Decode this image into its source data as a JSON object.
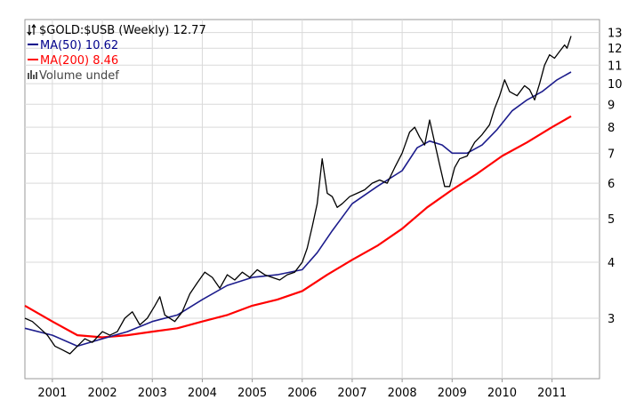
{
  "chart_data": {
    "type": "line",
    "symbol_text": "$GOLD:$USB (Weekly) 12.77",
    "last_value": 12.77,
    "legend": [
      {
        "key": "ma50",
        "text": "MA(50) 10.62",
        "color": "#00008b"
      },
      {
        "key": "ma200",
        "text": "MA(200) 8.46",
        "color": "#ff0000"
      },
      {
        "key": "volume",
        "text": "Volume undef",
        "color": "#555555"
      }
    ],
    "x_ticks": [
      "2001",
      "2002",
      "2003",
      "2004",
      "2005",
      "2006",
      "2007",
      "2008",
      "2009",
      "2010",
      "2011"
    ],
    "x_tick_values": [
      2001.0,
      2002.0,
      2003.0,
      2004.0,
      2005.0,
      2006.0,
      2007.0,
      2008.0,
      2009.0,
      2010.0,
      2011.0
    ],
    "xlim": [
      2000.45,
      2011.95
    ],
    "y_ticks": [
      "3",
      "4",
      "5",
      "6",
      "7",
      "8",
      "9",
      "10",
      "11",
      "12",
      "13"
    ],
    "y_tick_values": [
      3,
      4,
      5,
      6,
      7,
      8,
      9,
      10,
      11,
      12,
      13
    ],
    "ylim": [
      2.2,
      13.9
    ],
    "scale": "log",
    "grid": true,
    "series": [
      {
        "key": "price",
        "color": "#000000",
        "points": [
          [
            2000.45,
            3.0
          ],
          [
            2000.6,
            2.95
          ],
          [
            2000.75,
            2.85
          ],
          [
            2000.9,
            2.75
          ],
          [
            2001.05,
            2.6
          ],
          [
            2001.2,
            2.55
          ],
          [
            2001.35,
            2.5
          ],
          [
            2001.5,
            2.6
          ],
          [
            2001.65,
            2.7
          ],
          [
            2001.8,
            2.65
          ],
          [
            2002.0,
            2.8
          ],
          [
            2002.15,
            2.75
          ],
          [
            2002.3,
            2.8
          ],
          [
            2002.45,
            3.0
          ],
          [
            2002.6,
            3.1
          ],
          [
            2002.75,
            2.9
          ],
          [
            2002.9,
            3.0
          ],
          [
            2003.05,
            3.2
          ],
          [
            2003.15,
            3.35
          ],
          [
            2003.25,
            3.05
          ],
          [
            2003.45,
            2.95
          ],
          [
            2003.6,
            3.1
          ],
          [
            2003.75,
            3.4
          ],
          [
            2003.9,
            3.6
          ],
          [
            2004.05,
            3.8
          ],
          [
            2004.2,
            3.7
          ],
          [
            2004.35,
            3.5
          ],
          [
            2004.5,
            3.75
          ],
          [
            2004.65,
            3.65
          ],
          [
            2004.8,
            3.8
          ],
          [
            2004.95,
            3.7
          ],
          [
            2005.1,
            3.85
          ],
          [
            2005.25,
            3.75
          ],
          [
            2005.4,
            3.7
          ],
          [
            2005.55,
            3.65
          ],
          [
            2005.7,
            3.75
          ],
          [
            2005.85,
            3.8
          ],
          [
            2006.0,
            4.0
          ],
          [
            2006.1,
            4.3
          ],
          [
            2006.2,
            4.8
          ],
          [
            2006.3,
            5.4
          ],
          [
            2006.4,
            6.8
          ],
          [
            2006.5,
            5.7
          ],
          [
            2006.6,
            5.6
          ],
          [
            2006.7,
            5.3
          ],
          [
            2006.8,
            5.4
          ],
          [
            2006.95,
            5.6
          ],
          [
            2007.1,
            5.7
          ],
          [
            2007.25,
            5.8
          ],
          [
            2007.4,
            6.0
          ],
          [
            2007.55,
            6.1
          ],
          [
            2007.7,
            6.0
          ],
          [
            2007.85,
            6.5
          ],
          [
            2008.0,
            7.0
          ],
          [
            2008.15,
            7.8
          ],
          [
            2008.25,
            8.0
          ],
          [
            2008.35,
            7.6
          ],
          [
            2008.45,
            7.3
          ],
          [
            2008.55,
            8.3
          ],
          [
            2008.65,
            7.4
          ],
          [
            2008.75,
            6.6
          ],
          [
            2008.85,
            5.9
          ],
          [
            2008.95,
            5.9
          ],
          [
            2009.05,
            6.5
          ],
          [
            2009.15,
            6.8
          ],
          [
            2009.3,
            6.9
          ],
          [
            2009.45,
            7.4
          ],
          [
            2009.6,
            7.7
          ],
          [
            2009.75,
            8.1
          ],
          [
            2009.85,
            8.8
          ],
          [
            2009.95,
            9.4
          ],
          [
            2010.05,
            10.2
          ],
          [
            2010.15,
            9.6
          ],
          [
            2010.3,
            9.4
          ],
          [
            2010.45,
            9.9
          ],
          [
            2010.55,
            9.7
          ],
          [
            2010.65,
            9.2
          ],
          [
            2010.75,
            10.0
          ],
          [
            2010.85,
            11.0
          ],
          [
            2010.95,
            11.6
          ],
          [
            2011.05,
            11.4
          ],
          [
            2011.15,
            11.8
          ],
          [
            2011.25,
            12.2
          ],
          [
            2011.3,
            12.0
          ],
          [
            2011.38,
            12.77
          ]
        ]
      },
      {
        "key": "ma50",
        "color": "#1c1c8c",
        "points": [
          [
            2000.45,
            2.85
          ],
          [
            2001.0,
            2.75
          ],
          [
            2001.5,
            2.6
          ],
          [
            2002.0,
            2.7
          ],
          [
            2002.5,
            2.8
          ],
          [
            2003.0,
            2.95
          ],
          [
            2003.5,
            3.05
          ],
          [
            2004.0,
            3.3
          ],
          [
            2004.5,
            3.55
          ],
          [
            2005.0,
            3.7
          ],
          [
            2005.5,
            3.75
          ],
          [
            2006.0,
            3.85
          ],
          [
            2006.3,
            4.2
          ],
          [
            2006.6,
            4.7
          ],
          [
            2007.0,
            5.4
          ],
          [
            2007.5,
            5.9
          ],
          [
            2008.0,
            6.4
          ],
          [
            2008.3,
            7.2
          ],
          [
            2008.55,
            7.45
          ],
          [
            2008.8,
            7.3
          ],
          [
            2009.0,
            7.0
          ],
          [
            2009.3,
            7.0
          ],
          [
            2009.6,
            7.3
          ],
          [
            2009.9,
            7.9
          ],
          [
            2010.2,
            8.7
          ],
          [
            2010.5,
            9.2
          ],
          [
            2010.8,
            9.6
          ],
          [
            2011.1,
            10.2
          ],
          [
            2011.38,
            10.62
          ]
        ]
      },
      {
        "key": "ma200",
        "color": "#ff0000",
        "points": [
          [
            2000.45,
            3.2
          ],
          [
            2001.0,
            2.95
          ],
          [
            2001.5,
            2.75
          ],
          [
            2002.0,
            2.72
          ],
          [
            2002.5,
            2.75
          ],
          [
            2003.0,
            2.8
          ],
          [
            2003.5,
            2.85
          ],
          [
            2004.0,
            2.95
          ],
          [
            2004.5,
            3.05
          ],
          [
            2005.0,
            3.2
          ],
          [
            2005.5,
            3.3
          ],
          [
            2006.0,
            3.45
          ],
          [
            2006.5,
            3.75
          ],
          [
            2007.0,
            4.05
          ],
          [
            2007.5,
            4.35
          ],
          [
            2008.0,
            4.75
          ],
          [
            2008.5,
            5.3
          ],
          [
            2009.0,
            5.8
          ],
          [
            2009.5,
            6.3
          ],
          [
            2010.0,
            6.9
          ],
          [
            2010.5,
            7.4
          ],
          [
            2011.0,
            8.0
          ],
          [
            2011.38,
            8.46
          ]
        ]
      }
    ]
  }
}
